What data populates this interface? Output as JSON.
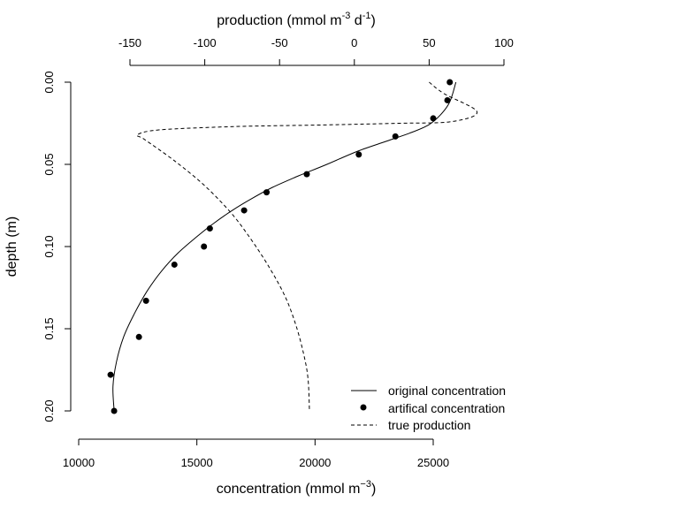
{
  "chart_data": {
    "type": "line",
    "title": "",
    "ylabel": "depth (m)",
    "xlabel_bottom": {
      "text": "concentration (mmol m",
      "sup": "−3",
      "tail": ")"
    },
    "xlabel_top": {
      "text1": "production (mmol m",
      "sup1": "-3",
      "text2": " d",
      "sup2": "-1",
      "tail": ")"
    },
    "y_axis": {
      "lim": [
        0,
        0.2
      ],
      "ticks": [
        0,
        0.05,
        0.1,
        0.15,
        0.2
      ],
      "tick_labels": [
        "0.00",
        "0.05",
        "0.10",
        "0.15",
        "0.20"
      ],
      "reversed": true
    },
    "x_bottom_axis": {
      "lim": [
        10000,
        25000
      ],
      "ticks": [
        10000,
        15000,
        20000,
        25000
      ],
      "tick_labels": [
        "10000",
        "15000",
        "20000",
        "25000"
      ]
    },
    "x_top_axis": {
      "lim": [
        -150,
        100
      ],
      "ticks": [
        -150,
        -100,
        -50,
        0,
        50,
        100
      ],
      "tick_labels": [
        "-150",
        "-100",
        "-50",
        "0",
        "50",
        "100"
      ]
    },
    "grid": false,
    "legend_position": "bottom-right",
    "series": [
      {
        "name": "original concentration",
        "style": "solid",
        "axis": "bottom",
        "x": [
          25960,
          25700,
          25300,
          24800,
          24000,
          23000,
          21800,
          20500,
          19300,
          18200,
          17300,
          16500,
          15700,
          15000,
          14200,
          13500,
          12900,
          12350,
          11900,
          11600,
          11450,
          11500
        ],
        "y": [
          0.0,
          0.012,
          0.02,
          0.026,
          0.031,
          0.036,
          0.042,
          0.05,
          0.057,
          0.064,
          0.071,
          0.078,
          0.086,
          0.094,
          0.104,
          0.115,
          0.127,
          0.141,
          0.155,
          0.17,
          0.185,
          0.2
        ]
      },
      {
        "name": "artifical concentration",
        "style": "points",
        "axis": "bottom",
        "x": [
          25700,
          25600,
          25000,
          23400,
          21850,
          19650,
          17950,
          17000,
          15550,
          15300,
          14050,
          12850,
          12550,
          11350,
          11500
        ],
        "y": [
          0.0,
          0.011,
          0.022,
          0.033,
          0.044,
          0.056,
          0.067,
          0.078,
          0.089,
          0.1,
          0.111,
          0.133,
          0.155,
          0.178,
          0.2
        ]
      },
      {
        "name": "true production",
        "style": "dashed",
        "axis": "top",
        "x": [
          50,
          60,
          82,
          65,
          30,
          -20,
          -80,
          -130,
          -145,
          -140,
          -120,
          -100,
          -82,
          -68,
          -56,
          -46,
          -39,
          -34,
          -31,
          -30
        ],
        "y": [
          0.0,
          0.007,
          0.018,
          0.024,
          0.025,
          0.026,
          0.027,
          0.029,
          0.032,
          0.035,
          0.048,
          0.063,
          0.08,
          0.097,
          0.114,
          0.131,
          0.148,
          0.165,
          0.18,
          0.2
        ]
      }
    ]
  }
}
